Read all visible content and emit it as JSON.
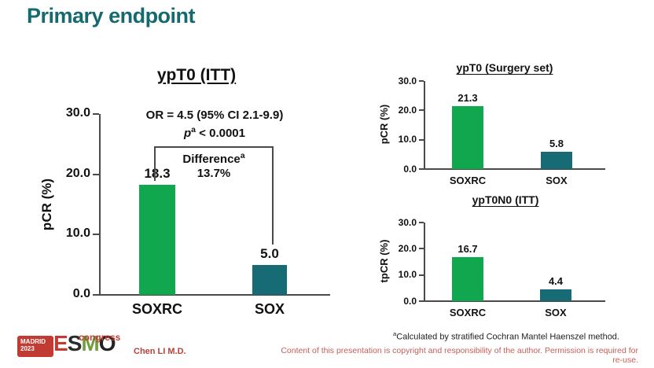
{
  "slide": {
    "title": "Primary endpoint"
  },
  "chart_data": [
    {
      "type": "bar",
      "title": "ypT0 (ITT)",
      "categories": [
        "SOXRC",
        "SOX"
      ],
      "values": [
        18.3,
        5.0
      ],
      "value_labels": [
        "18.3",
        "5.0"
      ],
      "ylabel": "pCR (%)",
      "ylim": [
        0,
        30
      ],
      "yticks": [
        "0.0",
        "10.0",
        "20.0",
        "30.0"
      ],
      "bar_colors": [
        "#10a74f",
        "#176b74"
      ],
      "grid": false,
      "annotations": {
        "or_line": "OR = 4.5 (95% CI 2.1-9.9)",
        "p_prefix": "p",
        "p_sup": "a",
        "p_rest": " < 0.0001",
        "difference_label": "Difference",
        "difference_sup": "a",
        "difference_value": "13.7%"
      }
    },
    {
      "type": "bar",
      "title": "ypT0 (Surgery set)",
      "categories": [
        "SOXRC",
        "SOX"
      ],
      "values": [
        21.3,
        5.8
      ],
      "value_labels": [
        "21.3",
        "5.8"
      ],
      "ylabel": "pCR (%)",
      "ylim": [
        0,
        30
      ],
      "yticks": [
        "0.0",
        "10.0",
        "20.0",
        "30.0"
      ],
      "bar_colors": [
        "#10a74f",
        "#176b74"
      ],
      "grid": false
    },
    {
      "type": "bar",
      "title": "ypT0N0 (ITT)",
      "categories": [
        "SOXRC",
        "SOX"
      ],
      "values": [
        16.7,
        4.4
      ],
      "value_labels": [
        "16.7",
        "4.4"
      ],
      "ylabel": "tpCR (%)",
      "ylim": [
        0,
        30
      ],
      "yticks": [
        "0.0",
        "10.0",
        "20.0",
        "30.0"
      ],
      "bar_colors": [
        "#10a74f",
        "#176b74"
      ],
      "grid": false
    }
  ],
  "footer": {
    "footnote_sup": "a",
    "footnote_text": "Calculated by stratified Cochran Mantel Haenszel method.",
    "author": "Chen LI M.D.",
    "disclaimer": "Content of this presentation is copyright and responsibility of the author. Permission is required for re-use."
  },
  "logo": {
    "city": "MADRID",
    "year": "2023",
    "letters": [
      "E",
      "S",
      "M",
      "O"
    ],
    "congress": "congress"
  },
  "colors": {
    "title_teal": "#156a6e",
    "bar_green": "#10a74f",
    "bar_teal": "#176b74",
    "logo_red": "#c23b33",
    "disclaimer_red": "#c75d58",
    "author_red": "#b5413c",
    "letter_colors": [
      "#c23b33",
      "#2b2b2b",
      "#6f9e3e",
      "#222222"
    ]
  }
}
